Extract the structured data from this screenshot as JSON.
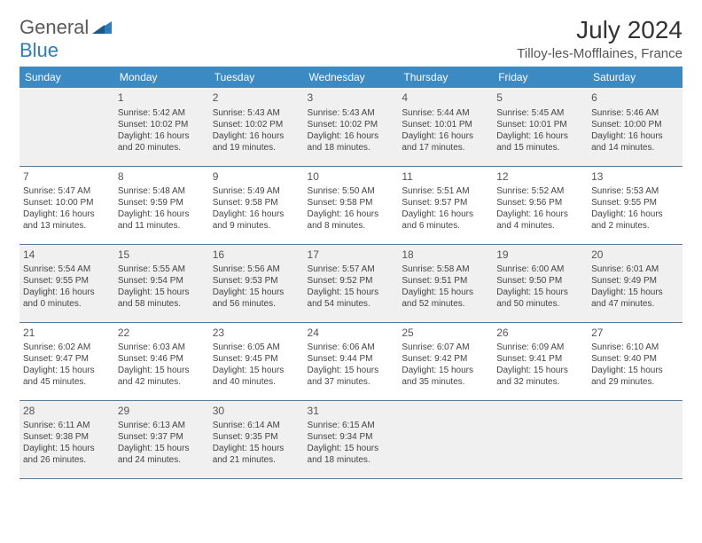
{
  "logo": {
    "text1": "General",
    "text2": "Blue"
  },
  "header": {
    "month_title": "July 2024",
    "location": "Tilloy-les-Mofflaines, France"
  },
  "colors": {
    "header_bg": "#3b8ac4",
    "header_text": "#ffffff",
    "row_alt_bg": "#f0f0f0",
    "row_bg": "#ffffff",
    "border": "#5a7a9a",
    "logo_gray": "#5a5a5a",
    "logo_blue": "#2d7cc1"
  },
  "day_headers": [
    "Sunday",
    "Monday",
    "Tuesday",
    "Wednesday",
    "Thursday",
    "Friday",
    "Saturday"
  ],
  "weeks": [
    {
      "alt": true,
      "days": [
        null,
        {
          "n": "1",
          "sr": "5:42 AM",
          "ss": "10:02 PM",
          "dl": "16 hours and 20 minutes."
        },
        {
          "n": "2",
          "sr": "5:43 AM",
          "ss": "10:02 PM",
          "dl": "16 hours and 19 minutes."
        },
        {
          "n": "3",
          "sr": "5:43 AM",
          "ss": "10:02 PM",
          "dl": "16 hours and 18 minutes."
        },
        {
          "n": "4",
          "sr": "5:44 AM",
          "ss": "10:01 PM",
          "dl": "16 hours and 17 minutes."
        },
        {
          "n": "5",
          "sr": "5:45 AM",
          "ss": "10:01 PM",
          "dl": "16 hours and 15 minutes."
        },
        {
          "n": "6",
          "sr": "5:46 AM",
          "ss": "10:00 PM",
          "dl": "16 hours and 14 minutes."
        }
      ]
    },
    {
      "alt": false,
      "days": [
        {
          "n": "7",
          "sr": "5:47 AM",
          "ss": "10:00 PM",
          "dl": "16 hours and 13 minutes."
        },
        {
          "n": "8",
          "sr": "5:48 AM",
          "ss": "9:59 PM",
          "dl": "16 hours and 11 minutes."
        },
        {
          "n": "9",
          "sr": "5:49 AM",
          "ss": "9:58 PM",
          "dl": "16 hours and 9 minutes."
        },
        {
          "n": "10",
          "sr": "5:50 AM",
          "ss": "9:58 PM",
          "dl": "16 hours and 8 minutes."
        },
        {
          "n": "11",
          "sr": "5:51 AM",
          "ss": "9:57 PM",
          "dl": "16 hours and 6 minutes."
        },
        {
          "n": "12",
          "sr": "5:52 AM",
          "ss": "9:56 PM",
          "dl": "16 hours and 4 minutes."
        },
        {
          "n": "13",
          "sr": "5:53 AM",
          "ss": "9:55 PM",
          "dl": "16 hours and 2 minutes."
        }
      ]
    },
    {
      "alt": true,
      "days": [
        {
          "n": "14",
          "sr": "5:54 AM",
          "ss": "9:55 PM",
          "dl": "16 hours and 0 minutes."
        },
        {
          "n": "15",
          "sr": "5:55 AM",
          "ss": "9:54 PM",
          "dl": "15 hours and 58 minutes."
        },
        {
          "n": "16",
          "sr": "5:56 AM",
          "ss": "9:53 PM",
          "dl": "15 hours and 56 minutes."
        },
        {
          "n": "17",
          "sr": "5:57 AM",
          "ss": "9:52 PM",
          "dl": "15 hours and 54 minutes."
        },
        {
          "n": "18",
          "sr": "5:58 AM",
          "ss": "9:51 PM",
          "dl": "15 hours and 52 minutes."
        },
        {
          "n": "19",
          "sr": "6:00 AM",
          "ss": "9:50 PM",
          "dl": "15 hours and 50 minutes."
        },
        {
          "n": "20",
          "sr": "6:01 AM",
          "ss": "9:49 PM",
          "dl": "15 hours and 47 minutes."
        }
      ]
    },
    {
      "alt": false,
      "days": [
        {
          "n": "21",
          "sr": "6:02 AM",
          "ss": "9:47 PM",
          "dl": "15 hours and 45 minutes."
        },
        {
          "n": "22",
          "sr": "6:03 AM",
          "ss": "9:46 PM",
          "dl": "15 hours and 42 minutes."
        },
        {
          "n": "23",
          "sr": "6:05 AM",
          "ss": "9:45 PM",
          "dl": "15 hours and 40 minutes."
        },
        {
          "n": "24",
          "sr": "6:06 AM",
          "ss": "9:44 PM",
          "dl": "15 hours and 37 minutes."
        },
        {
          "n": "25",
          "sr": "6:07 AM",
          "ss": "9:42 PM",
          "dl": "15 hours and 35 minutes."
        },
        {
          "n": "26",
          "sr": "6:09 AM",
          "ss": "9:41 PM",
          "dl": "15 hours and 32 minutes."
        },
        {
          "n": "27",
          "sr": "6:10 AM",
          "ss": "9:40 PM",
          "dl": "15 hours and 29 minutes."
        }
      ]
    },
    {
      "alt": true,
      "days": [
        {
          "n": "28",
          "sr": "6:11 AM",
          "ss": "9:38 PM",
          "dl": "15 hours and 26 minutes."
        },
        {
          "n": "29",
          "sr": "6:13 AM",
          "ss": "9:37 PM",
          "dl": "15 hours and 24 minutes."
        },
        {
          "n": "30",
          "sr": "6:14 AM",
          "ss": "9:35 PM",
          "dl": "15 hours and 21 minutes."
        },
        {
          "n": "31",
          "sr": "6:15 AM",
          "ss": "9:34 PM",
          "dl": "15 hours and 18 minutes."
        },
        null,
        null,
        null
      ]
    }
  ],
  "labels": {
    "sunrise": "Sunrise: ",
    "sunset": "Sunset: ",
    "daylight": "Daylight: "
  }
}
